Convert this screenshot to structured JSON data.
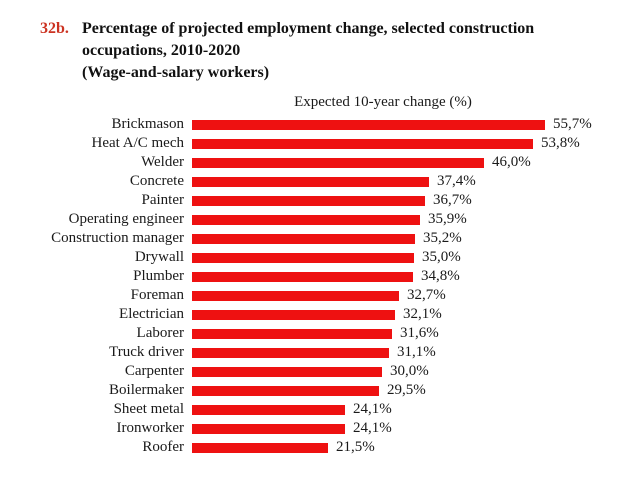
{
  "header": {
    "number": "32b.",
    "title_line1": "Percentage of projected employment change, selected construction",
    "title_line2": "occupations, 2010-2020",
    "title_line3": "(Wage-and-salary workers)"
  },
  "chart_data": {
    "type": "bar",
    "orientation": "horizontal",
    "title": "Expected 10-year change (%)",
    "xlabel": "",
    "ylabel": "",
    "xlim": [
      0,
      60
    ],
    "grid": false,
    "legend": "none",
    "decimal_separator": "comma",
    "categories": [
      "Brickmason",
      "Heat A/C mech",
      "Welder",
      "Concrete",
      "Painter",
      "Operating engineer",
      "Construction manager",
      "Drywall",
      "Plumber",
      "Foreman",
      "Electrician",
      "Laborer",
      "Truck driver",
      "Carpenter",
      "Boilermaker",
      "Sheet metal",
      "Ironworker",
      "Roofer"
    ],
    "values": [
      55.7,
      53.8,
      46.0,
      37.4,
      36.7,
      35.9,
      35.2,
      35.0,
      34.8,
      32.7,
      32.1,
      31.6,
      31.1,
      30.0,
      29.5,
      24.1,
      24.1,
      21.5
    ],
    "value_labels": [
      "55,7%",
      "53,8%",
      "46,0%",
      "37,4%",
      "36,7%",
      "35,9%",
      "35,2%",
      "35,0%",
      "34,8%",
      "32,7%",
      "32,1%",
      "31,6%",
      "31,1%",
      "30,0%",
      "29,5%",
      "24,1%",
      "24,1%",
      "21,5%"
    ]
  },
  "colors": {
    "bar": "#ee1111",
    "figure_number": "#cc3322",
    "text": "#1a1a1a",
    "background": "#ffffff"
  }
}
